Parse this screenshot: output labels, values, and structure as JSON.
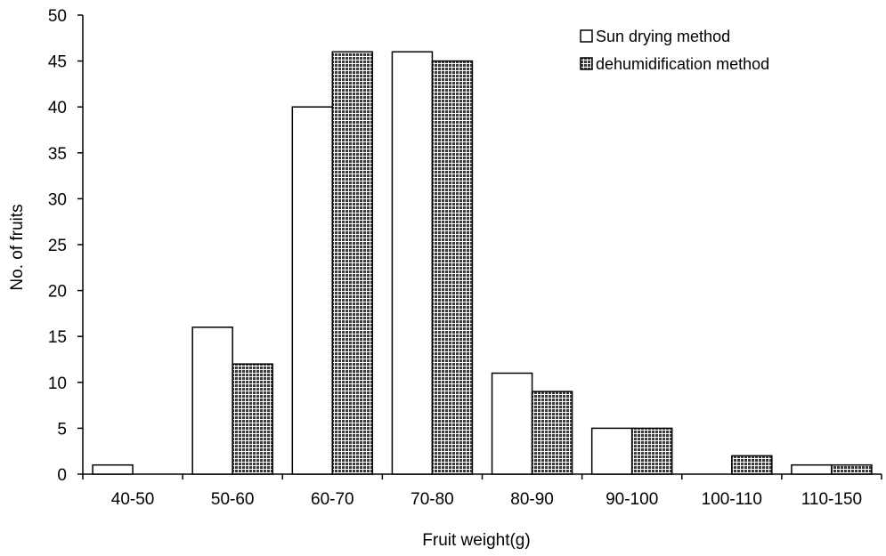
{
  "chart_data": {
    "type": "bar",
    "title": "",
    "xlabel": "Fruit weight(g)",
    "ylabel": "No. of fruits",
    "ylim": [
      0,
      50
    ],
    "yticks": [
      0,
      5,
      10,
      15,
      20,
      25,
      30,
      35,
      40,
      45,
      50
    ],
    "grid": false,
    "legend_position": "top-right",
    "categories": [
      "40-50",
      "50-60",
      "60-70",
      "70-80",
      "80-90",
      "90-100",
      "100-110",
      "110-150"
    ],
    "series": [
      {
        "name": "Sun drying method",
        "values": [
          1,
          16,
          40,
          46,
          11,
          5,
          0,
          1
        ],
        "fill": "#ffffff"
      },
      {
        "name": "dehumidification method",
        "values": [
          0,
          12,
          46,
          45,
          9,
          5,
          2,
          1
        ],
        "fill": "#555555"
      }
    ]
  }
}
